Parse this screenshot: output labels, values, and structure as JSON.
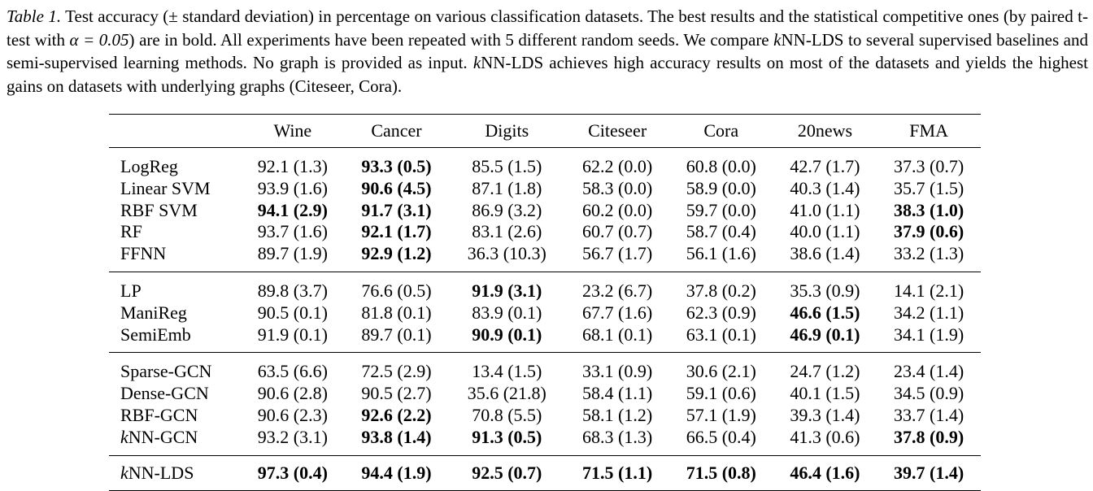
{
  "caption": {
    "label": "Table 1.",
    "line1_a": " Test accuracy (± standard deviation) in percentage on various classification datasets.  The best results and the statistical competitive ones (by paired t-test with ",
    "alpha": "α = 0.05",
    "line1_b": ") are in bold. All experiments have been repeated with 5 different random seeds. We compare ",
    "k1": "k",
    "line1_c": "NN-LDS to several supervised baselines and semi-supervised learning methods. No graph is provided as input. ",
    "k2": "k",
    "line1_d": "NN-LDS achieves high accuracy results on most of the datasets and yields the highest gains on datasets with underlying graphs (Citeseer, Cora)."
  },
  "table": {
    "headers": [
      "",
      "Wine",
      "Cancer",
      "Digits",
      "Citeseer",
      "Cora",
      "20news",
      "FMA"
    ],
    "groups": [
      [
        {
          "name": "LogReg",
          "cells": [
            {
              "v": "92.1 (1.3)",
              "b": false
            },
            {
              "v": "93.3 (0.5)",
              "b": true
            },
            {
              "v": "85.5 (1.5)",
              "b": false
            },
            {
              "v": "62.2 (0.0)",
              "b": false
            },
            {
              "v": "60.8 (0.0)",
              "b": false
            },
            {
              "v": "42.7 (1.7)",
              "b": false
            },
            {
              "v": "37.3 (0.7)",
              "b": false
            }
          ]
        },
        {
          "name": "Linear SVM",
          "cells": [
            {
              "v": "93.9 (1.6)",
              "b": false
            },
            {
              "v": "90.6 (4.5)",
              "b": true
            },
            {
              "v": "87.1 (1.8)",
              "b": false
            },
            {
              "v": "58.3 (0.0)",
              "b": false
            },
            {
              "v": "58.9 (0.0)",
              "b": false
            },
            {
              "v": "40.3 (1.4)",
              "b": false
            },
            {
              "v": "35.7 (1.5)",
              "b": false
            }
          ]
        },
        {
          "name": "RBF SVM",
          "cells": [
            {
              "v": "94.1 (2.9)",
              "b": true
            },
            {
              "v": "91.7 (3.1)",
              "b": true
            },
            {
              "v": "86.9 (3.2)",
              "b": false
            },
            {
              "v": "60.2 (0.0)",
              "b": false
            },
            {
              "v": "59.7 (0.0)",
              "b": false
            },
            {
              "v": "41.0 (1.1)",
              "b": false
            },
            {
              "v": "38.3 (1.0)",
              "b": true
            }
          ]
        },
        {
          "name": "RF",
          "cells": [
            {
              "v": "93.7 (1.6)",
              "b": false
            },
            {
              "v": "92.1 (1.7)",
              "b": true
            },
            {
              "v": "83.1 (2.6)",
              "b": false
            },
            {
              "v": "60.7 (0.7)",
              "b": false
            },
            {
              "v": "58.7 (0.4)",
              "b": false
            },
            {
              "v": "40.0 (1.1)",
              "b": false
            },
            {
              "v": "37.9 (0.6)",
              "b": true
            }
          ]
        },
        {
          "name": "FFNN",
          "cells": [
            {
              "v": "89.7 (1.9)",
              "b": false
            },
            {
              "v": "92.9 (1.2)",
              "b": true
            },
            {
              "v": "36.3 (10.3)",
              "b": false
            },
            {
              "v": "56.7 (1.7)",
              "b": false
            },
            {
              "v": "56.1 (1.6)",
              "b": false
            },
            {
              "v": "38.6 (1.4)",
              "b": false
            },
            {
              "v": "33.2 (1.3)",
              "b": false
            }
          ]
        }
      ],
      [
        {
          "name": "LP",
          "cells": [
            {
              "v": "89.8 (3.7)",
              "b": false
            },
            {
              "v": "76.6 (0.5)",
              "b": false
            },
            {
              "v": "91.9 (3.1)",
              "b": true
            },
            {
              "v": "23.2 (6.7)",
              "b": false
            },
            {
              "v": "37.8 (0.2)",
              "b": false
            },
            {
              "v": "35.3 (0.9)",
              "b": false
            },
            {
              "v": "14.1 (2.1)",
              "b": false
            }
          ]
        },
        {
          "name": "ManiReg",
          "cells": [
            {
              "v": "90.5 (0.1)",
              "b": false
            },
            {
              "v": "81.8 (0.1)",
              "b": false
            },
            {
              "v": "83.9 (0.1)",
              "b": false
            },
            {
              "v": "67.7 (1.6)",
              "b": false
            },
            {
              "v": "62.3 (0.9)",
              "b": false
            },
            {
              "v": "46.6 (1.5)",
              "b": true
            },
            {
              "v": "34.2 (1.1)",
              "b": false
            }
          ]
        },
        {
          "name": "SemiEmb",
          "cells": [
            {
              "v": "91.9 (0.1)",
              "b": false
            },
            {
              "v": "89.7 (0.1)",
              "b": false
            },
            {
              "v": "90.9 (0.1)",
              "b": true
            },
            {
              "v": "68.1 (0.1)",
              "b": false
            },
            {
              "v": "63.1 (0.1)",
              "b": false
            },
            {
              "v": "46.9 (0.1)",
              "b": true
            },
            {
              "v": "34.1 (1.9)",
              "b": false
            }
          ]
        }
      ],
      [
        {
          "name": "Sparse-GCN",
          "cells": [
            {
              "v": "63.5 (6.6)",
              "b": false
            },
            {
              "v": "72.5 (2.9)",
              "b": false
            },
            {
              "v": "13.4 (1.5)",
              "b": false
            },
            {
              "v": "33.1 (0.9)",
              "b": false
            },
            {
              "v": "30.6 (2.1)",
              "b": false
            },
            {
              "v": "24.7 (1.2)",
              "b": false
            },
            {
              "v": "23.4 (1.4)",
              "b": false
            }
          ]
        },
        {
          "name": "Dense-GCN",
          "cells": [
            {
              "v": "90.6 (2.8)",
              "b": false
            },
            {
              "v": "90.5 (2.7)",
              "b": false
            },
            {
              "v": "35.6 (21.8)",
              "b": false
            },
            {
              "v": "58.4 (1.1)",
              "b": false
            },
            {
              "v": "59.1 (0.6)",
              "b": false
            },
            {
              "v": "40.1 (1.5)",
              "b": false
            },
            {
              "v": "34.5 (0.9)",
              "b": false
            }
          ]
        },
        {
          "name": "RBF-GCN",
          "cells": [
            {
              "v": "90.6 (2.3)",
              "b": false
            },
            {
              "v": "92.6 (2.2)",
              "b": true
            },
            {
              "v": "70.8 (5.5)",
              "b": false
            },
            {
              "v": "58.1 (1.2)",
              "b": false
            },
            {
              "v": "57.1 (1.9)",
              "b": false
            },
            {
              "v": "39.3 (1.4)",
              "b": false
            },
            {
              "v": "33.7 (1.4)",
              "b": false
            }
          ]
        },
        {
          "name": "kNN-GCN",
          "cells": [
            {
              "v": "93.2 (3.1)",
              "b": false
            },
            {
              "v": "93.8 (1.4)",
              "b": true
            },
            {
              "v": "91.3 (0.5)",
              "b": true
            },
            {
              "v": "68.3 (1.3)",
              "b": false
            },
            {
              "v": "66.5 (0.4)",
              "b": false
            },
            {
              "v": "41.3 (0.6)",
              "b": false
            },
            {
              "v": "37.8 (0.9)",
              "b": true
            }
          ]
        }
      ]
    ],
    "final": {
      "name": "kNN-LDS",
      "cells": [
        {
          "v": "97.3 (0.4)",
          "b": true
        },
        {
          "v": "94.4 (1.9)",
          "b": true
        },
        {
          "v": "92.5 (0.7)",
          "b": true
        },
        {
          "v": "71.5 (1.1)",
          "b": true
        },
        {
          "v": "71.5 (0.8)",
          "b": true
        },
        {
          "v": "46.4 (1.6)",
          "b": true
        },
        {
          "v": "39.7 (1.4)",
          "b": true
        }
      ]
    }
  }
}
